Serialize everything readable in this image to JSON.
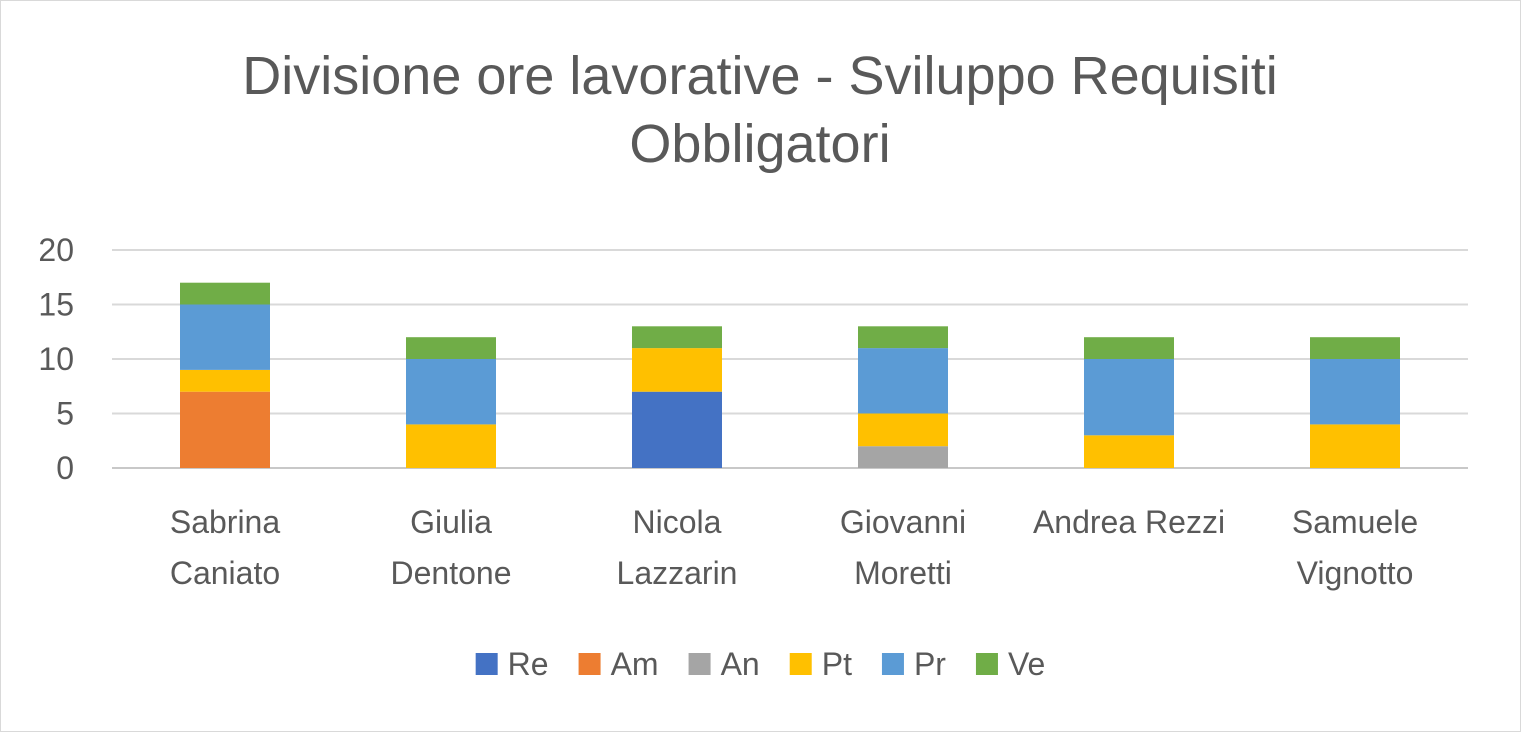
{
  "chart_data": {
    "type": "bar",
    "stacked": true,
    "title": "Divisione ore lavorative - Sviluppo Requisiti Obbligatori",
    "xlabel": "",
    "ylabel": "",
    "ylim": [
      0,
      20
    ],
    "yticks": [
      "0",
      "5",
      "10",
      "15",
      "20"
    ],
    "grid": true,
    "legend_position": "bottom",
    "categories": [
      [
        "Sabrina",
        "Caniato"
      ],
      [
        "Giulia",
        "Dentone"
      ],
      [
        "Nicola",
        "Lazzarin"
      ],
      [
        "Giovanni",
        "Moretti"
      ],
      [
        "Andrea Rezzi"
      ],
      [
        "Samuele",
        "Vignotto"
      ]
    ],
    "series": [
      {
        "name": "Re",
        "color": "#4472c4",
        "values": [
          0,
          0,
          7,
          0,
          0,
          0
        ]
      },
      {
        "name": "Am",
        "color": "#ed7d31",
        "values": [
          7,
          0,
          0,
          0,
          0,
          0
        ]
      },
      {
        "name": "An",
        "color": "#a5a5a5",
        "values": [
          0,
          0,
          0,
          2,
          0,
          0
        ]
      },
      {
        "name": "Pt",
        "color": "#ffc000",
        "values": [
          2,
          4,
          4,
          3,
          3,
          4
        ]
      },
      {
        "name": "Pr",
        "color": "#5b9bd5",
        "values": [
          6,
          6,
          0,
          6,
          7,
          6
        ]
      },
      {
        "name": "Ve",
        "color": "#70ad47",
        "values": [
          2,
          2,
          2,
          2,
          2,
          2
        ]
      }
    ]
  }
}
